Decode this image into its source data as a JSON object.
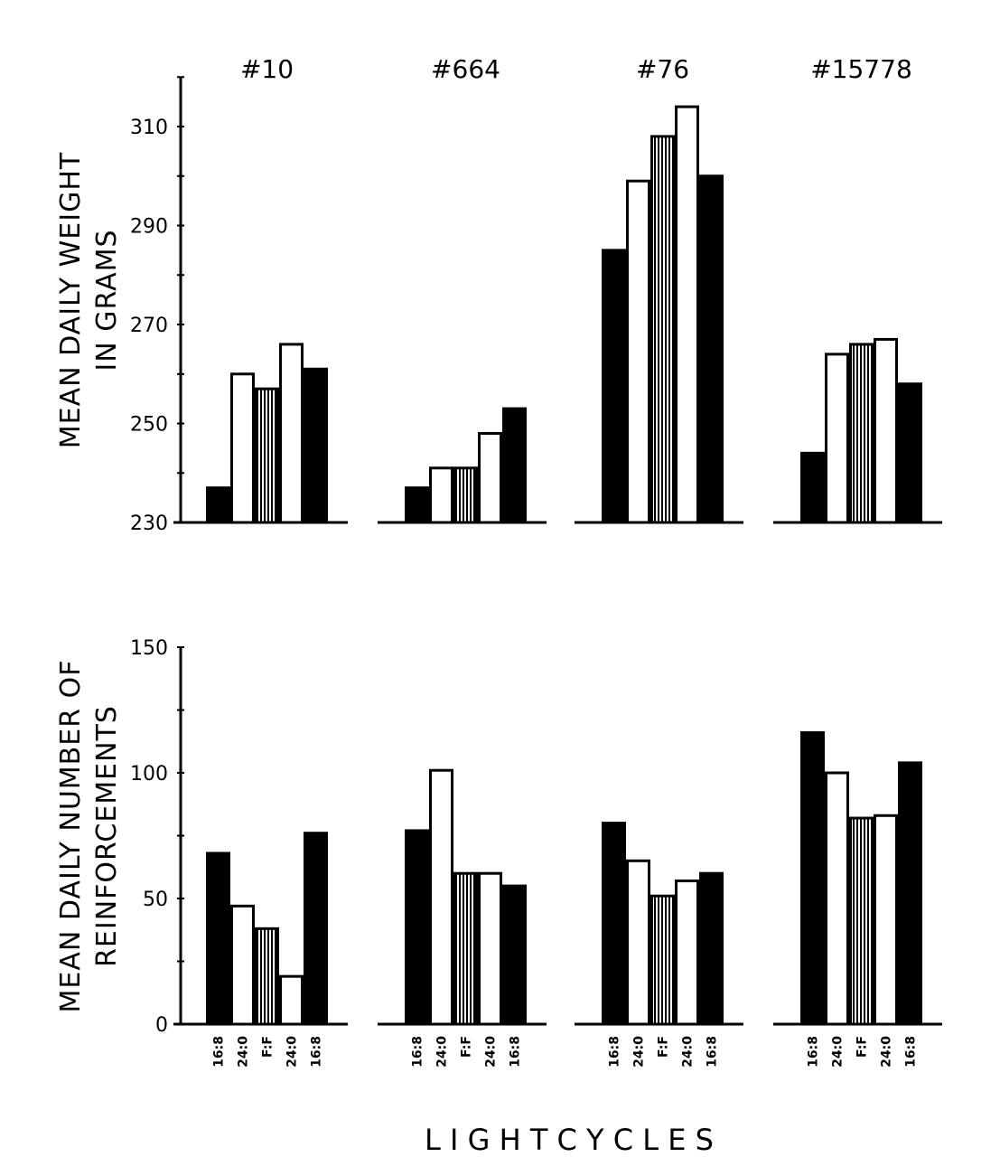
{
  "chart_data": [
    {
      "type": "bar",
      "title": "",
      "ylabel_lines": [
        "MEAN DAILY WEIGHT",
        "IN GRAMS"
      ],
      "ylim": [
        230,
        320
      ],
      "yticks": [
        230,
        250,
        270,
        290,
        310
      ],
      "groups": [
        {
          "label": "#10",
          "values": [
            237,
            260,
            257,
            266,
            261
          ]
        },
        {
          "label": "#664",
          "values": [
            237,
            241,
            241,
            248,
            253
          ]
        },
        {
          "label": "#76",
          "values": [
            285,
            299,
            308,
            314,
            300
          ]
        },
        {
          "label": "#15778",
          "values": [
            244,
            264,
            266,
            267,
            258
          ]
        }
      ],
      "categories": [
        "16:8",
        "24:0",
        "F:F",
        "24:0",
        "16:8"
      ],
      "bar_styles": [
        "solid",
        "open",
        "hatched",
        "open",
        "solid"
      ]
    },
    {
      "type": "bar",
      "title": "",
      "ylabel_lines": [
        "MEAN DAILY NUMBER OF",
        "REINFORCEMENTS"
      ],
      "ylim": [
        0,
        150
      ],
      "yticks": [
        0,
        50,
        100,
        150
      ],
      "groups": [
        {
          "values": [
            68,
            47,
            38,
            19,
            76
          ]
        },
        {
          "values": [
            77,
            101,
            60,
            60,
            55
          ]
        },
        {
          "values": [
            80,
            65,
            51,
            57,
            60
          ]
        },
        {
          "values": [
            116,
            100,
            82,
            83,
            104
          ]
        }
      ],
      "categories": [
        "16:8",
        "24:0",
        "F:F",
        "24:0",
        "16:8"
      ],
      "bar_styles": [
        "solid",
        "open",
        "hatched",
        "open",
        "solid"
      ],
      "xlabel": "L I G H T   C Y C L E S"
    }
  ]
}
